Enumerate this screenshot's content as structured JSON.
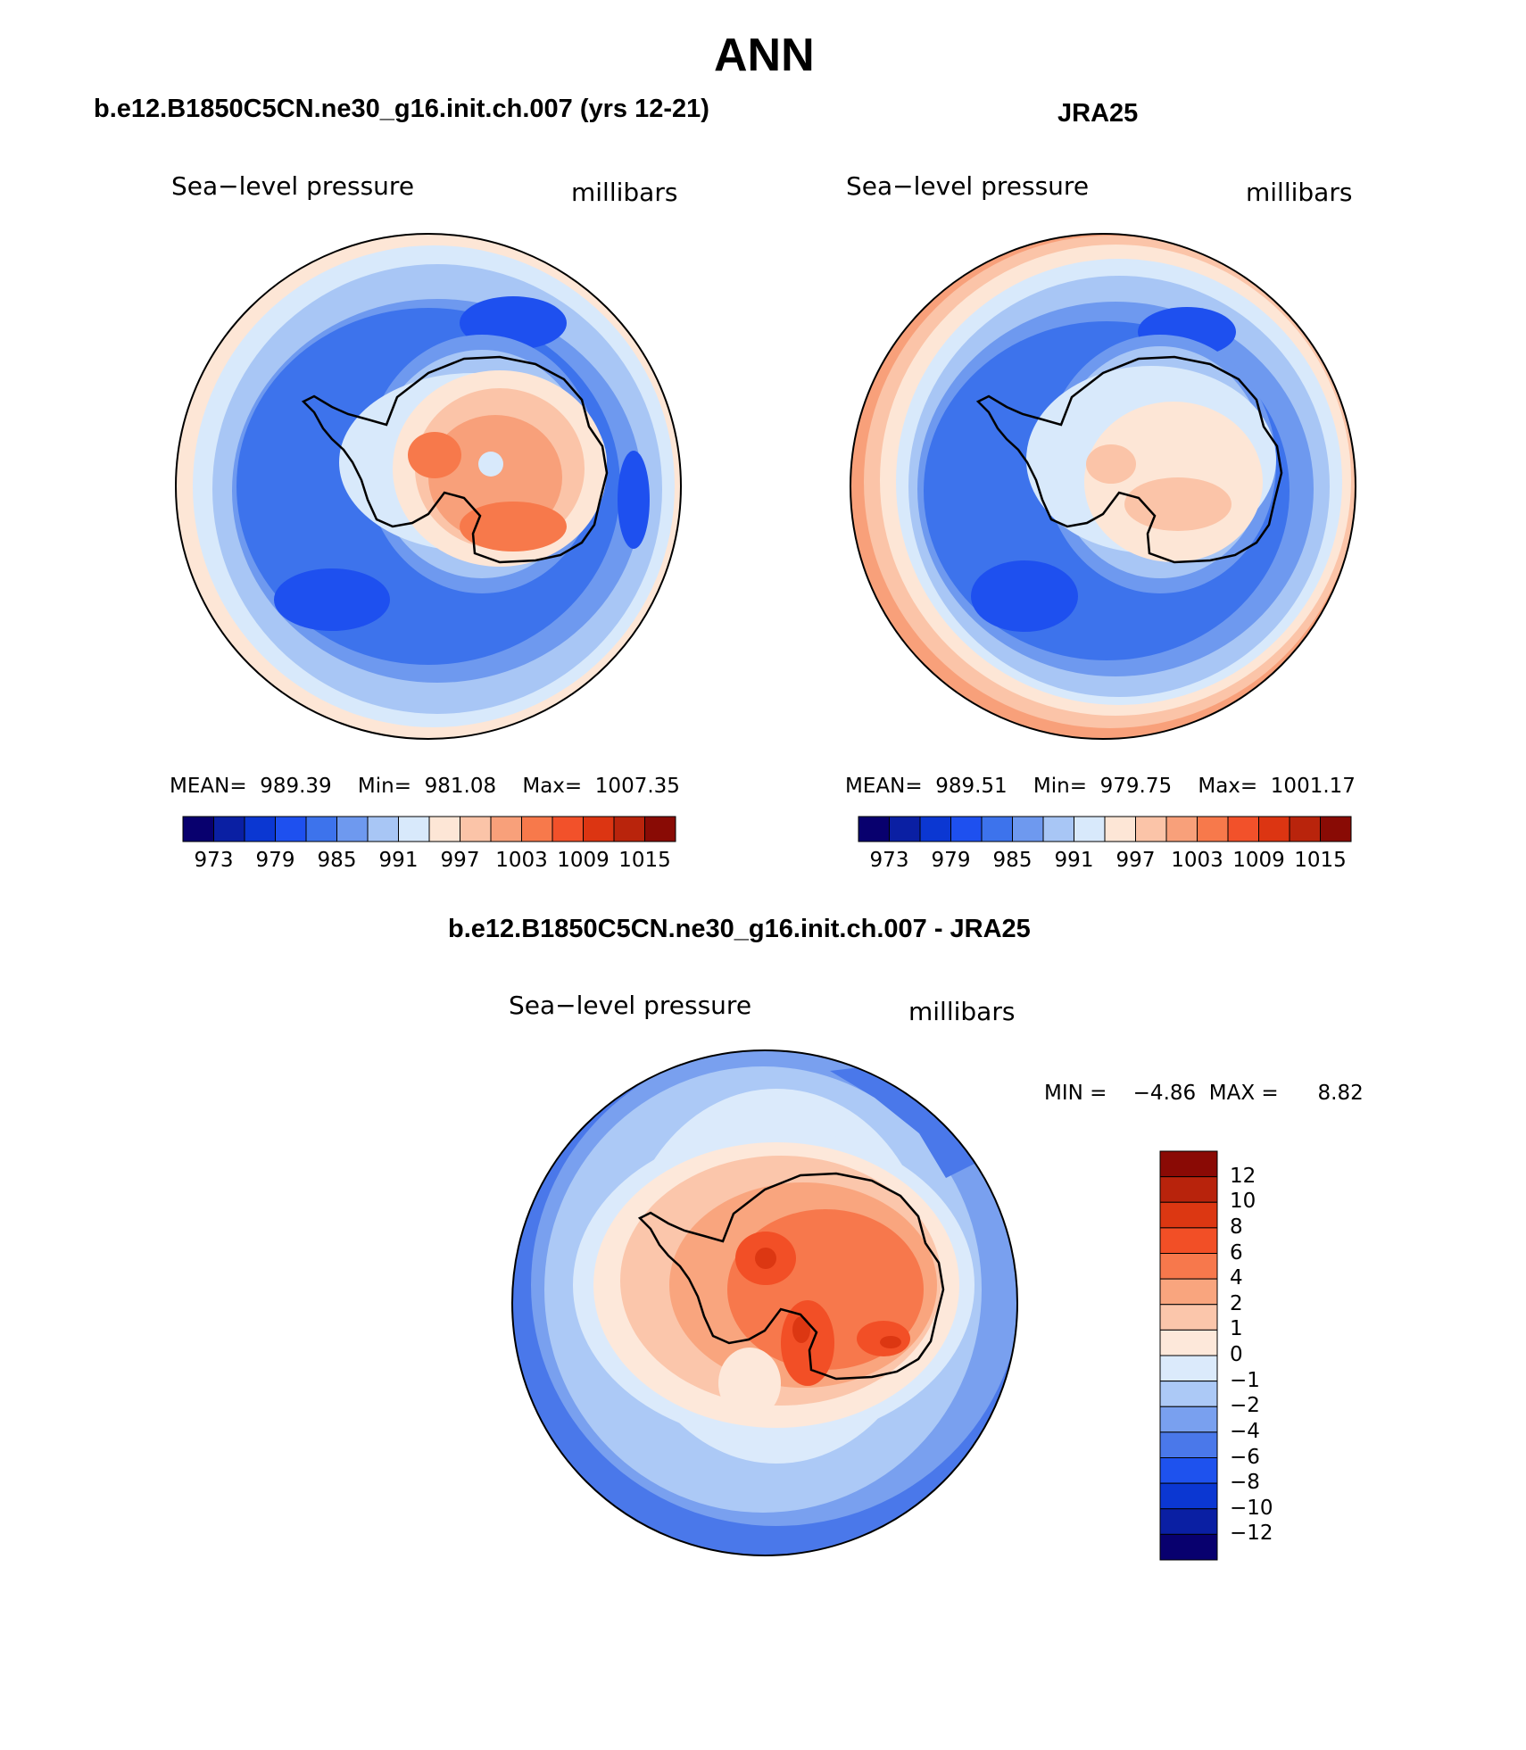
{
  "figure": {
    "season": "ANN"
  },
  "panels": {
    "model": {
      "title": "b.e12.B1850C5CN.ne30_g16.init.ch.007 (yrs 12-21)",
      "variable": "Sea−level pressure",
      "units": "millibars",
      "stats": "MEAN=  989.39    Min=  981.08    Max=  1007.35",
      "colorbar_labels": [
        "973",
        "979",
        "985",
        "991",
        "997",
        "1003",
        "1009",
        "1015"
      ]
    },
    "obs": {
      "title": "JRA25",
      "variable": "Sea−level pressure",
      "units": "millibars",
      "stats": "MEAN=  989.51    Min=  979.75    Max=  1001.17",
      "colorbar_labels": [
        "973",
        "979",
        "985",
        "991",
        "997",
        "1003",
        "1009",
        "1015"
      ]
    },
    "diff": {
      "title": "b.e12.B1850C5CN.ne30_g16.init.ch.007 - JRA25",
      "variable": "Sea−level pressure",
      "units": "millibars",
      "minmax": "MIN =    −4.86  MAX =      8.82",
      "colorbar_labels": [
        "12",
        "10",
        "8",
        "6",
        "4",
        "2",
        "1",
        "0",
        "−1",
        "−2",
        "−4",
        "−6",
        "−8",
        "−10",
        "−12"
      ]
    }
  },
  "colors": {
    "abs_scale": [
      "#08006e",
      "#0a1fa3",
      "#0b37d2",
      "#1e50ef",
      "#3d73ec",
      "#6e99ef",
      "#a8c6f5",
      "#d8e9fb",
      "#fde6d6",
      "#fbc4a8",
      "#f8a07a",
      "#f7794b",
      "#f2512a",
      "#dc3512",
      "#b9240c",
      "#890b05"
    ],
    "diff_scale": [
      "#8a0a05",
      "#b8230c",
      "#dc3712",
      "#f24f26",
      "#f7784c",
      "#f9a57e",
      "#fbc6ab",
      "#fde8da",
      "#dbeafb",
      "#acc9f6",
      "#79a0ef",
      "#4a78ea",
      "#1e52ee",
      "#0b37d2",
      "#0a1fa3",
      "#08006e"
    ]
  }
}
